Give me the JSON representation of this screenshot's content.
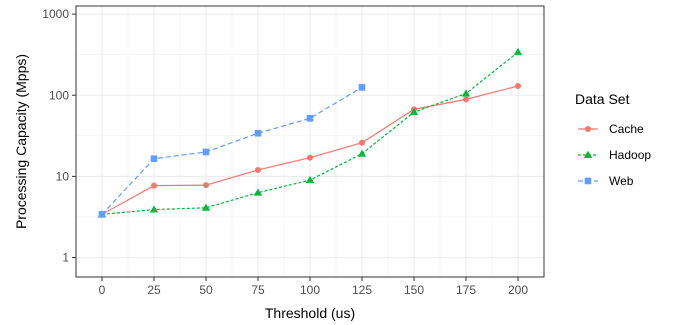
{
  "chart_data": {
    "type": "line",
    "title": "",
    "xlabel": "Threshold (us)",
    "ylabel": "Processing Capacity (Mpps)",
    "x": [
      0,
      25,
      50,
      75,
      100,
      125,
      150,
      175,
      200
    ],
    "x_tick_labels": [
      "0",
      "25",
      "50",
      "75",
      "100",
      "125",
      "150",
      "175",
      "200"
    ],
    "y_scale": "log10",
    "ylim": [
      1,
      1000
    ],
    "y_tick_values": [
      1,
      10,
      100,
      1000
    ],
    "y_tick_labels": [
      "1",
      "10",
      "100",
      "1000"
    ],
    "grid": true,
    "legend": {
      "title": "Data Set",
      "position": "right"
    },
    "series": [
      {
        "name": "Cache",
        "color": "#F8766D",
        "marker": "circle",
        "line": "solid",
        "x": [
          0,
          25,
          50,
          75,
          100,
          125,
          150,
          175,
          200
        ],
        "values": [
          3.4,
          7.7,
          7.8,
          12,
          17,
          26,
          67,
          89,
          130
        ]
      },
      {
        "name": "Hadoop",
        "color": "#00BA38",
        "marker": "triangle",
        "line": "dotted",
        "x": [
          0,
          25,
          50,
          75,
          100,
          125,
          150,
          175,
          200
        ],
        "values": [
          3.4,
          3.9,
          4.1,
          6.3,
          9,
          19,
          62,
          105,
          340
        ]
      },
      {
        "name": "Web",
        "color": "#619CFF",
        "marker": "square",
        "line": "dashed",
        "x": [
          0,
          25,
          50,
          75,
          100,
          125
        ],
        "values": [
          3.4,
          16.5,
          20,
          34,
          52,
          125
        ]
      }
    ]
  }
}
